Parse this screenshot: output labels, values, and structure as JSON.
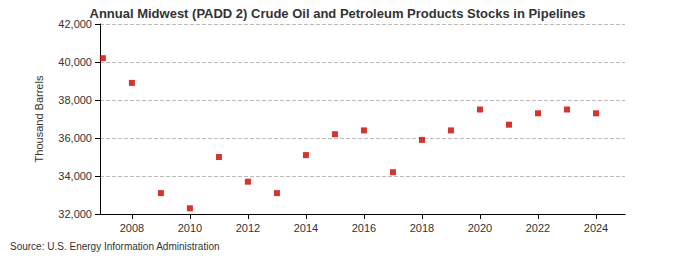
{
  "chart_data": {
    "type": "scatter",
    "title": "Annual Midwest (PADD 2) Crude Oil and Petroleum Products Stocks in Pipelines",
    "y_label": "Thousand Barrels",
    "annotations": [
      "Source: U.S. Energy Information Administration"
    ],
    "x": [
      2007,
      2008,
      2009,
      2010,
      2011,
      2012,
      2013,
      2014,
      2015,
      2016,
      2017,
      2018,
      2019,
      2020,
      2021,
      2022,
      2023,
      2024
    ],
    "values": [
      40200,
      38900,
      33100,
      32300,
      35000,
      33700,
      33100,
      35100,
      36200,
      36400,
      34200,
      35900,
      36400,
      37500,
      36700,
      37300,
      37500,
      37300
    ],
    "color": "#cc0000",
    "marker": "square",
    "xlim": [
      2006.9,
      2025
    ],
    "xticks": [
      2008,
      2010,
      2012,
      2014,
      2016,
      2018,
      2020,
      2022,
      2024
    ],
    "ylim": [
      32000,
      42000
    ],
    "yticks": [
      {
        "value": 32000,
        "label": "32,000"
      },
      {
        "value": 34000,
        "label": "34,000"
      },
      {
        "value": 36000,
        "label": "36,000"
      },
      {
        "value": 38000,
        "label": "38,000"
      },
      {
        "value": 40000,
        "label": "40,000"
      },
      {
        "value": 42000,
        "label": "42,000"
      }
    ],
    "grid": true
  }
}
